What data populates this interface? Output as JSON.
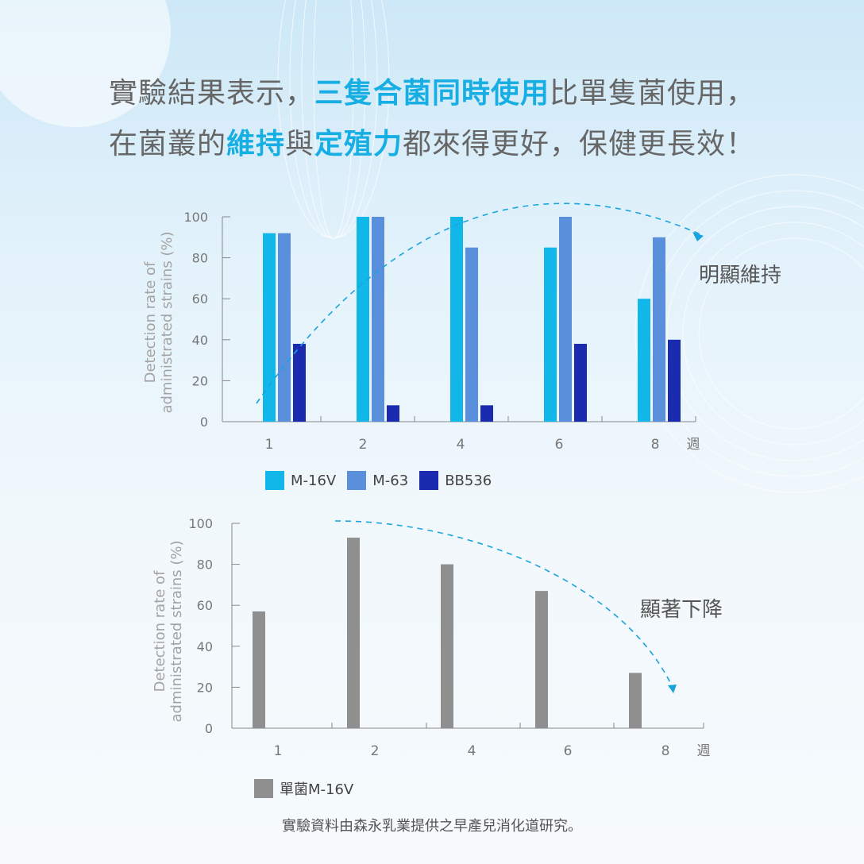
{
  "headline": {
    "line1": [
      {
        "text": "實驗結果表示，",
        "highlight": false
      },
      {
        "text": "三隻合菌同時使用",
        "highlight": true
      },
      {
        "text": "比單隻菌使用，",
        "highlight": false
      }
    ],
    "line2": [
      {
        "text": "在菌叢的",
        "highlight": false
      },
      {
        "text": "維持",
        "highlight": true
      },
      {
        "text": "與",
        "highlight": false
      },
      {
        "text": "定殖力",
        "highlight": true
      },
      {
        "text": "都來得更好，保健更長效！",
        "highlight": false
      }
    ]
  },
  "colors": {
    "highlight": "#17aee3",
    "axis": "#888888",
    "trend_arrow": "#1aa3dc"
  },
  "chart_data": [
    {
      "type": "bar",
      "ylabel": [
        "Detection rate of",
        "administrated strains (%)"
      ],
      "xunit": "週",
      "yticks": [
        0,
        20,
        40,
        60,
        80,
        100
      ],
      "ylim": [
        0,
        100
      ],
      "categories": [
        "1",
        "2",
        "4",
        "6",
        "8"
      ],
      "series": [
        {
          "name": "M-16V",
          "color": "#12b7ea",
          "values": [
            92,
            100,
            100,
            85,
            60
          ]
        },
        {
          "name": "M-63",
          "color": "#5a8fdc",
          "values": [
            92,
            100,
            85,
            100,
            90
          ]
        },
        {
          "name": "BB536",
          "color": "#1b2bb0",
          "values": [
            38,
            8,
            8,
            38,
            40
          ]
        }
      ],
      "annotation": "明顯維持",
      "legend_position": "bottom"
    },
    {
      "type": "bar",
      "ylabel": [
        "Detection rate of",
        "administrated strains (%)"
      ],
      "xunit": "週",
      "yticks": [
        0,
        20,
        40,
        60,
        80,
        100
      ],
      "ylim": [
        0,
        100
      ],
      "categories": [
        "1",
        "2",
        "4",
        "6",
        "8"
      ],
      "series": [
        {
          "name": "單菌M-16V",
          "color": "#8f8f8f",
          "values": [
            57,
            93,
            80,
            67,
            27
          ]
        }
      ],
      "annotation": "顯著下降",
      "legend_position": "bottom"
    }
  ],
  "footnote": "實驗資料由森永乳業提供之早產兒消化道研究。"
}
